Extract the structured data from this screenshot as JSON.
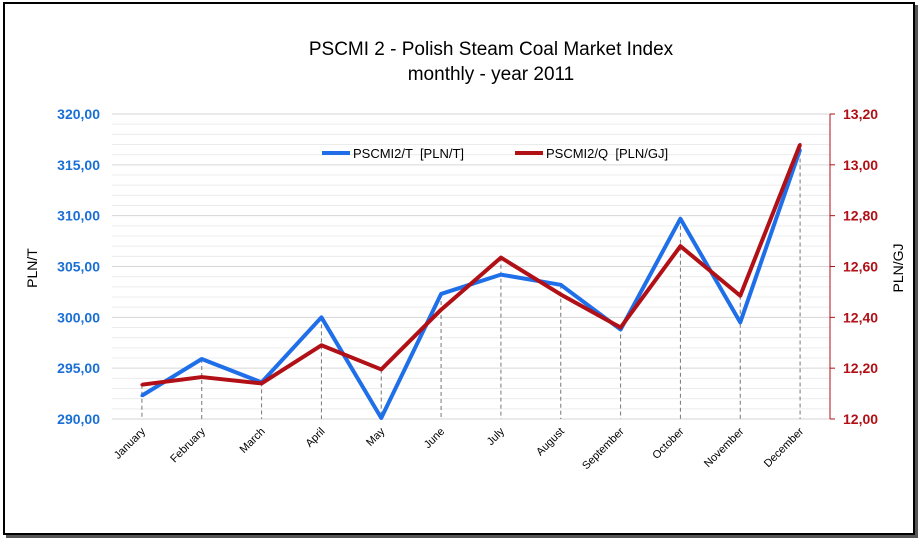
{
  "chart_data": {
    "type": "line",
    "title": "PSCMI 2 - Polish Steam Coal Market Index",
    "subtitle": "monthly - year 2011",
    "categories": [
      "January",
      "February",
      "March",
      "April",
      "May",
      "June",
      "July",
      "August",
      "September",
      "October",
      "November",
      "December"
    ],
    "y_left": {
      "label": "PLN/T",
      "range": [
        290,
        320
      ],
      "ticks": [
        "290,00",
        "295,00",
        "300,00",
        "305,00",
        "310,00",
        "315,00",
        "320,00"
      ]
    },
    "y_right": {
      "label": "PLN/GJ",
      "range": [
        12.0,
        13.2
      ],
      "ticks": [
        "12,00",
        "12,20",
        "12,40",
        "12,60",
        "12,80",
        "13,00",
        "13,20"
      ]
    },
    "series": [
      {
        "name": "PSCMI2/T  [PLN/T]",
        "axis": "left",
        "color": "#1f6fe8",
        "values": [
          292.3,
          295.9,
          293.6,
          300.0,
          290.1,
          302.3,
          304.2,
          303.2,
          298.8,
          309.7,
          299.5,
          316.5
        ]
      },
      {
        "name": "PSCMI2/Q  [PLN/GJ]",
        "axis": "right",
        "color": "#b01016",
        "values": [
          12.135,
          12.165,
          12.14,
          12.29,
          12.195,
          12.43,
          12.635,
          12.49,
          12.36,
          12.68,
          12.485,
          13.08
        ]
      }
    ],
    "grid": true,
    "legend": "top-center"
  }
}
